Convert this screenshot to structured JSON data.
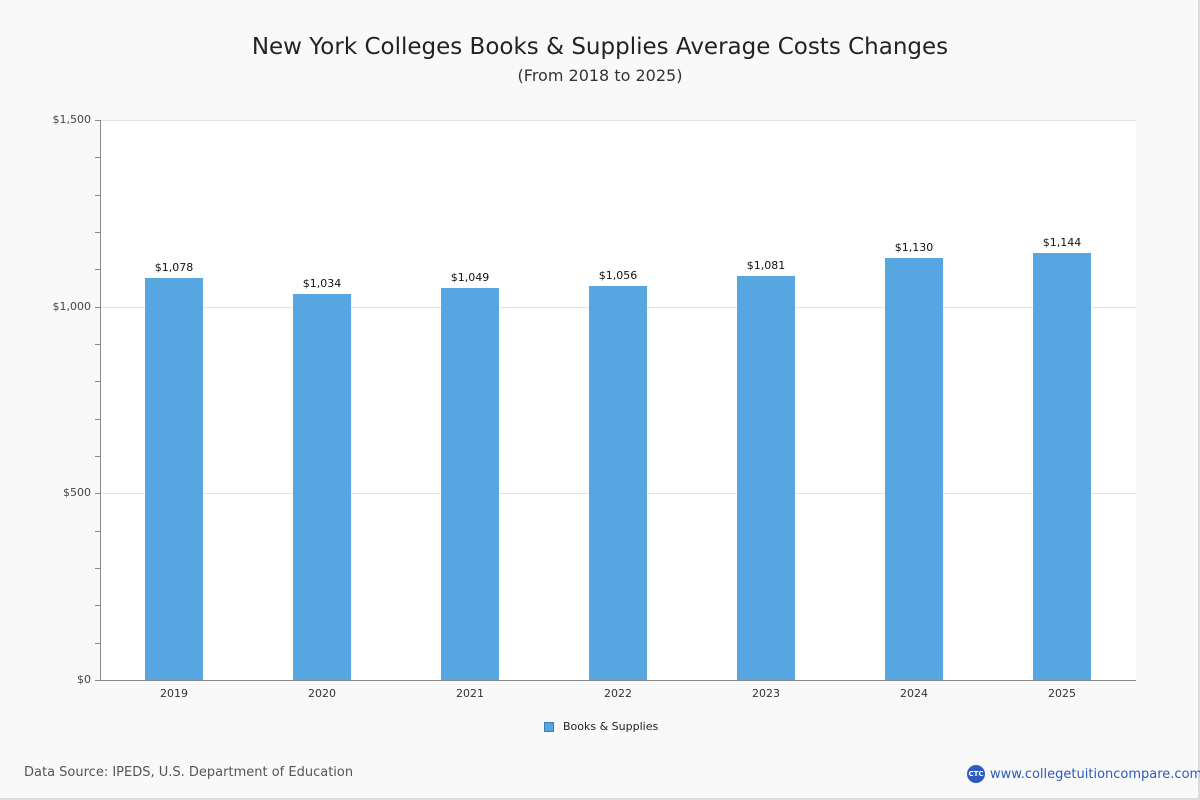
{
  "header": {
    "title": "New York Colleges  Books & Supplies Average Costs Changes",
    "subtitle": "(From 2018 to 2025)"
  },
  "y_axis": {
    "ticks": [
      {
        "value": 0,
        "label": "$0"
      },
      {
        "value": 500,
        "label": "$500"
      },
      {
        "value": 1000,
        "label": "$1,000"
      },
      {
        "value": 1500,
        "label": "$1,500"
      }
    ]
  },
  "bars": [
    {
      "year": "2019",
      "value": 1078,
      "label": "$1,078"
    },
    {
      "year": "2020",
      "value": 1034,
      "label": "$1,034"
    },
    {
      "year": "2021",
      "value": 1049,
      "label": "$1,049"
    },
    {
      "year": "2022",
      "value": 1056,
      "label": "$1,056"
    },
    {
      "year": "2023",
      "value": 1081,
      "label": "$1,081"
    },
    {
      "year": "2024",
      "value": 1130,
      "label": "$1,130"
    },
    {
      "year": "2025",
      "value": 1144,
      "label": "$1,144"
    }
  ],
  "legend": {
    "label": "Books & Supplies",
    "color": "#57a5e1"
  },
  "footer": {
    "source": "Data Source: IPEDS, U.S. Department of Education",
    "brand_logo": "CTC",
    "brand_url": "www.collegetuitioncompare.com"
  },
  "chart_data": {
    "type": "bar",
    "title": "New York Colleges  Books & Supplies Average Costs Changes",
    "subtitle": "(From 2018 to 2025)",
    "categories": [
      "2019",
      "2020",
      "2021",
      "2022",
      "2023",
      "2024",
      "2025"
    ],
    "series": [
      {
        "name": "Books & Supplies",
        "values": [
          1078,
          1034,
          1049,
          1056,
          1081,
          1130,
          1144
        ],
        "color": "#57a5e1"
      }
    ],
    "xlabel": "",
    "ylabel": "",
    "ylim": [
      0,
      1500
    ],
    "yticks": [
      "$0",
      "$500",
      "$1,000",
      "$1,500"
    ],
    "grid": true,
    "legend_position": "bottom",
    "data_labels": [
      "$1,078",
      "$1,034",
      "$1,049",
      "$1,056",
      "$1,081",
      "$1,130",
      "$1,144"
    ]
  }
}
